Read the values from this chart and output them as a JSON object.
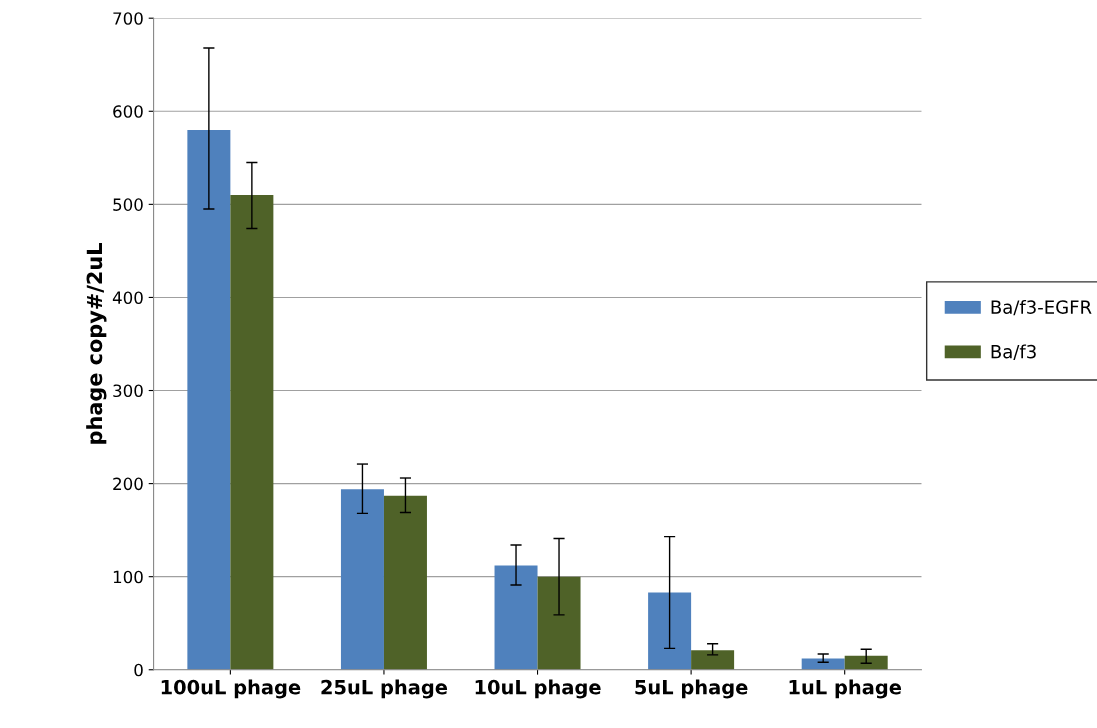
{
  "chart_data": {
    "type": "bar",
    "ylabel": "phage copy#/2uL",
    "categories": [
      "100uL phage",
      "25uL phage",
      "10uL phage",
      "5uL phage",
      "1uL phage"
    ],
    "series": [
      {
        "name": "Ba/f3-EGFR",
        "color": "#4f81bd",
        "values": [
          580,
          194,
          112,
          83,
          12
        ],
        "errors": [
          [
            495,
            668
          ],
          [
            168,
            221
          ],
          [
            91,
            134
          ],
          [
            23,
            143
          ],
          [
            8,
            17
          ]
        ]
      },
      {
        "name": "Ba/f3",
        "color": "#4f6228",
        "values": [
          510,
          187,
          100,
          21,
          15
        ],
        "errors": [
          [
            474,
            545
          ],
          [
            169,
            206
          ],
          [
            59,
            141
          ],
          [
            16,
            28
          ],
          [
            7,
            22
          ]
        ]
      }
    ],
    "ylim": [
      0,
      700
    ],
    "yticks": [
      0,
      100,
      200,
      300,
      400,
      500,
      600,
      700
    ],
    "grid": "y",
    "legend": "right"
  }
}
